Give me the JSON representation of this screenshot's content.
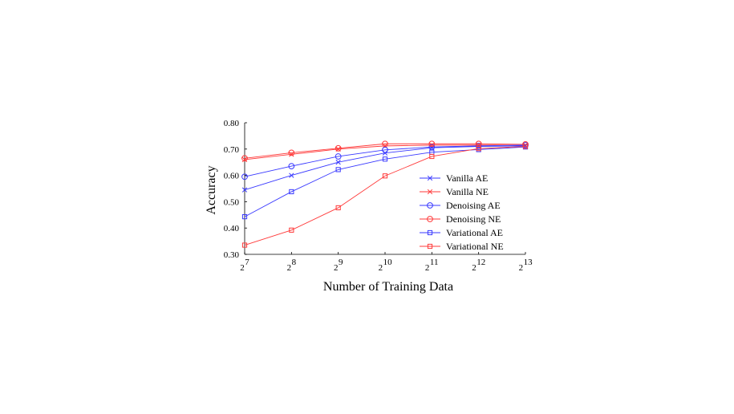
{
  "chart_data": {
    "type": "line",
    "xlabel": "Number of Training Data",
    "ylabel": "Accuracy",
    "x": [
      7,
      8,
      9,
      10,
      11,
      12,
      13
    ],
    "x_tick_base": "2",
    "x_tick_exponents": [
      "7",
      "8",
      "9",
      "10",
      "11",
      "12",
      "13"
    ],
    "y_ticks": [
      "0.30",
      "0.40",
      "0.50",
      "0.60",
      "0.70",
      "0.80"
    ],
    "ylim": [
      0.3,
      0.8
    ],
    "legend_position": "right-center",
    "grid": false,
    "series": [
      {
        "name": "Vanilla AE",
        "color": "#3a3aff",
        "marker": "x",
        "values": [
          0.545,
          0.6,
          0.65,
          0.685,
          0.705,
          0.71,
          0.712
        ]
      },
      {
        "name": "Vanilla NE",
        "color": "#ff3a3a",
        "marker": "x",
        "values": [
          0.66,
          0.68,
          0.7,
          0.712,
          0.715,
          0.715,
          0.715
        ]
      },
      {
        "name": "Denoising AE",
        "color": "#3a3aff",
        "marker": "circle",
        "values": [
          0.595,
          0.635,
          0.672,
          0.697,
          0.708,
          0.712,
          0.715
        ]
      },
      {
        "name": "Denoising NE",
        "color": "#ff3a3a",
        "marker": "circle",
        "values": [
          0.665,
          0.686,
          0.703,
          0.72,
          0.72,
          0.72,
          0.718
        ]
      },
      {
        "name": "Variational AE",
        "color": "#3a3aff",
        "marker": "square",
        "values": [
          0.443,
          0.538,
          0.622,
          0.662,
          0.688,
          0.698,
          0.708
        ]
      },
      {
        "name": "Variational NE",
        "color": "#ff3a3a",
        "marker": "square",
        "values": [
          0.335,
          0.392,
          0.477,
          0.598,
          0.672,
          0.702,
          0.71
        ]
      }
    ]
  }
}
